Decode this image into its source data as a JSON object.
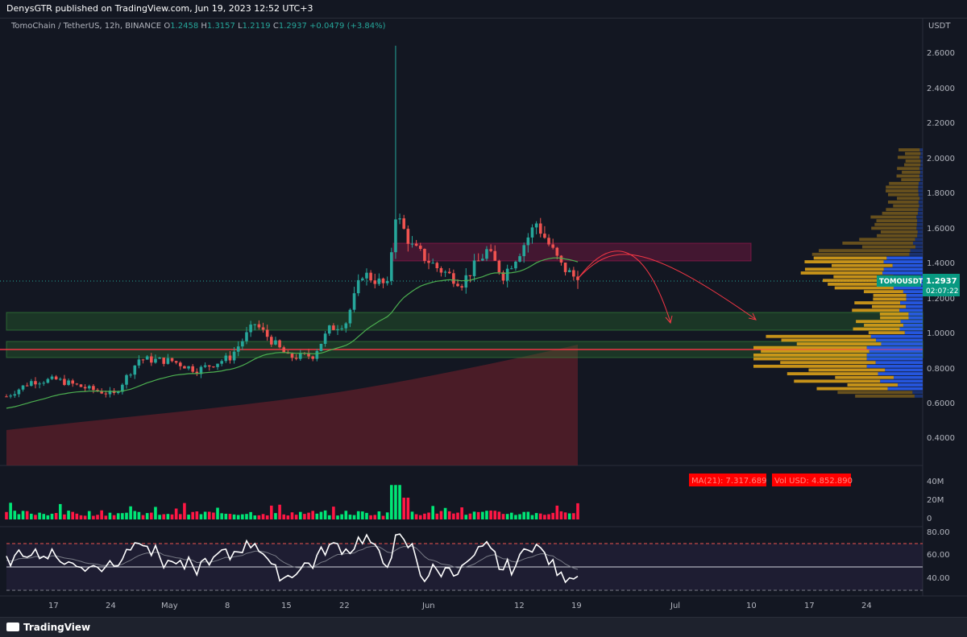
{
  "header": {
    "published": "DenysGTR published on TradingView.com, Jun 19, 2023 12:52 UTC+3"
  },
  "legend": {
    "symbol": "TomoChain / TetherUS, 12h, BINANCE",
    "open_label": "O",
    "open": "1.2458",
    "high_label": "H",
    "high": "1.3157",
    "low_label": "L",
    "low": "1.2119",
    "close_label": "C",
    "close": "1.2937",
    "change": "+0.0479 (+3.84%)"
  },
  "price_axis": {
    "unit": "USDT",
    "ticks": [
      "2.6000",
      "2.4000",
      "2.2000",
      "2.0000",
      "1.8000",
      "1.6000",
      "1.4000",
      "1.2000",
      "1.0000",
      "0.8000",
      "0.6000",
      "0.4000"
    ]
  },
  "last_price": {
    "symbol_tag": "TOMOUSDT",
    "price": "1.2937",
    "countdown": "02:07:22",
    "color": "#089981"
  },
  "volume_panel": {
    "ma_label": "MA(21): 7.317.689",
    "vol_label": "Vol USD: 4.852.890",
    "ticks": [
      "40M",
      "20M",
      "0"
    ]
  },
  "rsi_panel": {
    "ticks": [
      "80.00",
      "60.00",
      "40.00"
    ]
  },
  "time_axis": {
    "labels": [
      "17",
      "24",
      "May",
      "8",
      "15",
      "22",
      "Jun",
      "12",
      "19",
      "Jul",
      "10",
      "17",
      "24"
    ]
  },
  "footer": {
    "brand": "TradingView"
  },
  "colors": {
    "up": "#26a69a",
    "down": "#ef5350",
    "bull_volume": "#00e676",
    "bear_volume": "#ff1744",
    "ma_line": "#4caf50",
    "resistance_zone": "#c2185b",
    "support_zone": "#2e7d32",
    "horizontal_line": "#f23645",
    "volume_profile_value_area": "#2962ff",
    "volume_profile_outside": "#e6a817"
  },
  "chart_data": {
    "type": "candlestick",
    "timeframe": "12h",
    "ylim": [
      0.3,
      2.7
    ],
    "ohlc_anchors": [
      [
        "Apr 11",
        0.67
      ],
      [
        "Apr 14",
        0.75
      ],
      [
        "Apr 17",
        0.76
      ],
      [
        "Apr 21",
        0.71
      ],
      [
        "Apr 24",
        0.68
      ],
      [
        "Apr 27",
        0.87
      ],
      [
        "May 1",
        0.86
      ],
      [
        "May 4",
        0.81
      ],
      [
        "May 8",
        0.88
      ],
      [
        "May 11",
        1.06
      ],
      [
        "May 15",
        0.88
      ],
      [
        "May 18",
        0.89
      ],
      [
        "May 20",
        1.03
      ],
      [
        "May 22",
        1.07
      ],
      [
        "May 24",
        1.33
      ],
      [
        "May 27",
        1.26
      ],
      [
        "May 28",
        1.65
      ],
      [
        "May 30",
        1.47
      ],
      [
        "Jun 2",
        1.36
      ],
      [
        "Jun 5",
        1.28
      ],
      [
        "Jun 8",
        1.45
      ],
      [
        "Jun 10",
        1.32
      ],
      [
        "Jun 12",
        1.45
      ],
      [
        "Jun 14",
        1.6
      ],
      [
        "Jun 17",
        1.37
      ],
      [
        "Jun 19",
        1.2937
      ]
    ],
    "spike_high": {
      "date": "May 28",
      "value": 2.55
    },
    "moving_average": {
      "color": "#4caf50"
    },
    "zones": [
      {
        "type": "resistance",
        "from": 1.4,
        "to": 1.5,
        "color": "#c2185b"
      },
      {
        "type": "support",
        "from": 1.0,
        "to": 1.11,
        "color": "#2e7d32"
      },
      {
        "type": "support",
        "from": 0.86,
        "to": 0.95,
        "color": "#2e7d32"
      }
    ],
    "horizontal_line": {
      "value": 0.89,
      "color": "#f23645"
    },
    "rsi_levels": [
      70,
      50,
      30
    ]
  }
}
